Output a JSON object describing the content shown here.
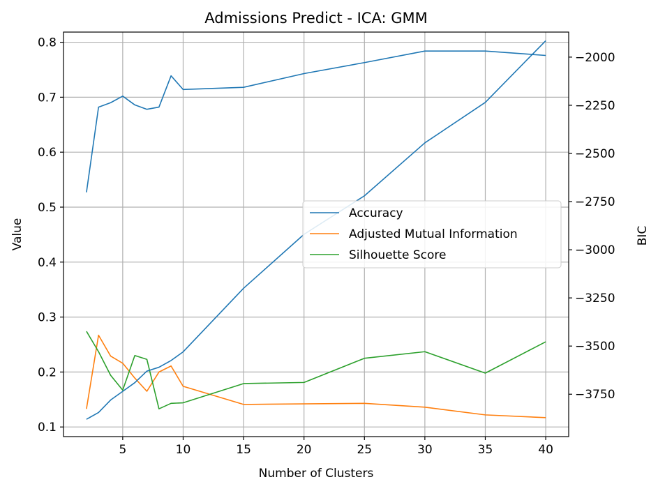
{
  "chart_data": {
    "type": "line",
    "title": "Admissions Predict - ICA: GMM",
    "xlabel": "Number of Clusters",
    "ylabel": "Value",
    "y2label": "BIC",
    "xlim": [
      0.1,
      41.9
    ],
    "ylim": [
      0.0825,
      0.8185
    ],
    "y2lim": [
      -3970,
      -1870
    ],
    "xticks": [
      5,
      10,
      15,
      20,
      25,
      30,
      35,
      40
    ],
    "yticks": [
      0.1,
      0.2,
      0.3,
      0.4,
      0.5,
      0.6,
      0.7,
      0.8
    ],
    "y2ticks": [
      -2000,
      -2250,
      -2500,
      -2750,
      -3000,
      -3250,
      -3500,
      -3750
    ],
    "grid": true,
    "legend_position": "center-right",
    "colors": {
      "accuracy": "#1f77b4",
      "ami": "#ff7f0e",
      "silhouette": "#2ca02c",
      "bic": "#1f77b4"
    },
    "series": [
      {
        "name": "Accuracy",
        "key": "accuracy",
        "axis": "left",
        "x": [
          2,
          3,
          4,
          5,
          6,
          7,
          8,
          9,
          10,
          15,
          20,
          25,
          30,
          35,
          40
        ],
        "values": [
          0.527,
          0.682,
          0.69,
          0.702,
          0.686,
          0.678,
          0.682,
          0.739,
          0.714,
          0.718,
          0.743,
          0.763,
          0.784,
          0.784,
          0.776
        ]
      },
      {
        "name": "Adjusted Mutual Information",
        "key": "ami",
        "axis": "left",
        "x": [
          2,
          3,
          4,
          5,
          6,
          7,
          8,
          9,
          10,
          15,
          20,
          25,
          30,
          35,
          40
        ],
        "values": [
          0.133,
          0.267,
          0.229,
          0.216,
          0.189,
          0.165,
          0.2,
          0.211,
          0.174,
          0.141,
          0.142,
          0.143,
          0.136,
          0.122,
          0.117
        ]
      },
      {
        "name": "Silhouette Score",
        "key": "silhouette",
        "axis": "left",
        "x": [
          2,
          3,
          4,
          5,
          6,
          7,
          8,
          9,
          10,
          15,
          20,
          25,
          30,
          35,
          40
        ],
        "values": [
          0.274,
          0.237,
          0.194,
          0.167,
          0.23,
          0.223,
          0.133,
          0.143,
          0.144,
          0.179,
          0.181,
          0.225,
          0.237,
          0.198,
          0.255
        ]
      },
      {
        "key": "bic",
        "axis": "right",
        "x": [
          2,
          3,
          4,
          5,
          6,
          7,
          8,
          9,
          10,
          15,
          20,
          25,
          30,
          35,
          40
        ],
        "values": [
          -3880,
          -3845,
          -3780,
          -3735,
          -3690,
          -3630,
          -3610,
          -3575,
          -3530,
          -3200,
          -2920,
          -2720,
          -2445,
          -2235,
          -1915
        ]
      }
    ]
  }
}
